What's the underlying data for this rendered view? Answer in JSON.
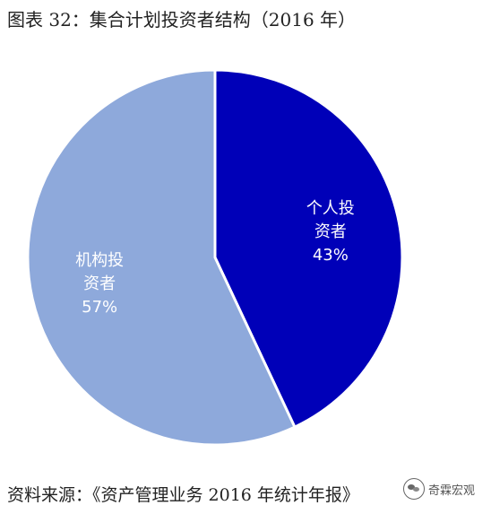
{
  "figure": {
    "title": "图表 32：集合计划投资者结构（2016 年）",
    "source": "资料来源：《资产管理业务 2016 年统计年报》",
    "watermark": "奇霖宏观"
  },
  "chart_data": {
    "type": "pie",
    "slices": [
      {
        "label_lines": [
          "个人投",
          "资者"
        ],
        "value": 43,
        "value_label": "43%",
        "color": "#0000B8"
      },
      {
        "label_lines": [
          "机构投",
          "资者"
        ],
        "value": 57,
        "value_label": "57%",
        "color": "#8EA9DB"
      }
    ],
    "start_angle_deg": 0,
    "direction": "clockwise",
    "legend": "none"
  },
  "icons": {
    "watermark_icon": "wechat-logo-icon"
  }
}
